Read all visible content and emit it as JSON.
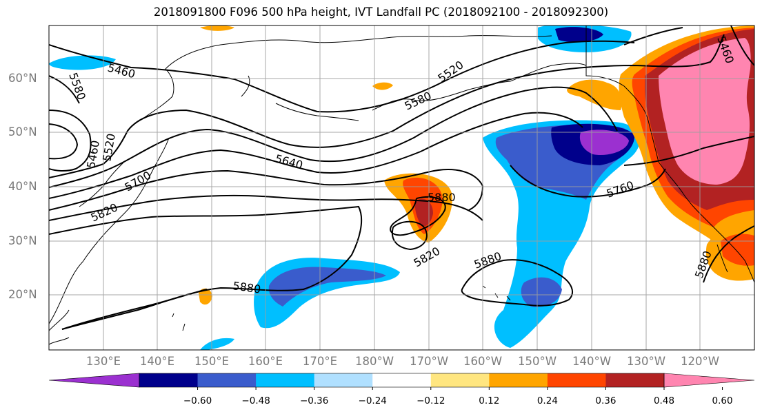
{
  "title": "2018091800 F096 500 hPa height, IVT Landfall PC (2018092100 - 2018092300)",
  "lat_labels": [
    "60°N",
    "50°N",
    "40°N",
    "30°N",
    "20°N"
  ],
  "lon_labels": [
    "130°E",
    "140°E",
    "150°E",
    "160°E",
    "170°E",
    "180°W",
    "170°W",
    "160°W",
    "150°W",
    "140°W",
    "130°W",
    "120°W"
  ],
  "contour_labels": [
    "5460",
    "5580",
    "5460",
    "5520",
    "5700",
    "5820",
    "5640",
    "5580",
    "5520",
    "5880",
    "5820",
    "5880",
    "5880",
    "5760",
    "5460",
    "5880"
  ],
  "colorbar": {
    "extend": "both",
    "bins": [
      {
        "color": "#9b30d0"
      },
      {
        "color": "#00008b"
      },
      {
        "color": "#3a5ccc"
      },
      {
        "color": "#00bfff"
      },
      {
        "color": "#b0e0ff"
      },
      {
        "color": "#ffffff"
      },
      {
        "color": "#ffe680"
      },
      {
        "color": "#ffa500"
      },
      {
        "color": "#ff4500"
      },
      {
        "color": "#b22222"
      },
      {
        "color": "#ff85b0"
      }
    ],
    "tick_labels": [
      "−0.60",
      "−0.48",
      "−0.36",
      "−0.24",
      "−0.12",
      "0.12",
      "0.24",
      "0.36",
      "0.48",
      "0.60"
    ]
  }
}
